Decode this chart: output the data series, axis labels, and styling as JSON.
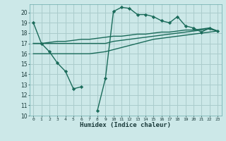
{
  "xlabel": "Humidex (Indice chaleur)",
  "bg_color": "#cce8e8",
  "grid_color": "#aacccc",
  "line_color": "#1a6b5a",
  "marker": "D",
  "markersize": 2.2,
  "linewidth": 1.0,
  "xlim": [
    -0.5,
    23.5
  ],
  "ylim": [
    10,
    20.8
  ],
  "yticks": [
    10,
    11,
    12,
    13,
    14,
    15,
    16,
    17,
    18,
    19,
    20
  ],
  "xticks": [
    0,
    1,
    2,
    3,
    4,
    5,
    6,
    7,
    8,
    9,
    10,
    11,
    12,
    13,
    14,
    15,
    16,
    17,
    18,
    19,
    20,
    21,
    22,
    23
  ],
  "series1_x": [
    0,
    1,
    2,
    3,
    4,
    5,
    6
  ],
  "series1_y": [
    19.0,
    17.0,
    16.2,
    15.1,
    14.3,
    12.6,
    12.8
  ],
  "series2_x": [
    8,
    9,
    10,
    11,
    12,
    13,
    14,
    15,
    16,
    17,
    18,
    19,
    20,
    21,
    22,
    23
  ],
  "series2_y": [
    10.5,
    13.6,
    20.1,
    20.5,
    20.4,
    19.8,
    19.8,
    19.6,
    19.2,
    19.0,
    19.6,
    18.7,
    18.5,
    18.1,
    18.5,
    18.2
  ],
  "series3_x": [
    0,
    1,
    2,
    3,
    4,
    5,
    6,
    7,
    8,
    9,
    10,
    11,
    12,
    13,
    14,
    15,
    16,
    17,
    18,
    19,
    20,
    21,
    22,
    23
  ],
  "series3_y": [
    17.0,
    17.0,
    17.1,
    17.2,
    17.2,
    17.3,
    17.4,
    17.4,
    17.5,
    17.6,
    17.7,
    17.7,
    17.8,
    17.9,
    17.9,
    18.0,
    18.1,
    18.1,
    18.2,
    18.3,
    18.3,
    18.4,
    18.5,
    18.2
  ],
  "series4_x": [
    0,
    1,
    2,
    3,
    4,
    5,
    6,
    7,
    8,
    9,
    10,
    11,
    12,
    13,
    14,
    15,
    16,
    17,
    18,
    19,
    20,
    21,
    22,
    23
  ],
  "series4_y": [
    17.0,
    17.0,
    17.0,
    17.0,
    17.0,
    17.0,
    17.0,
    17.0,
    17.0,
    17.0,
    17.2,
    17.3,
    17.4,
    17.5,
    17.6,
    17.7,
    17.8,
    17.9,
    18.0,
    18.1,
    18.2,
    18.3,
    18.4,
    18.2
  ],
  "series5_x": [
    0,
    1,
    2,
    3,
    4,
    5,
    6,
    7,
    8,
    9,
    10,
    11,
    12,
    13,
    14,
    15,
    16,
    17,
    18,
    19,
    20,
    21,
    22,
    23
  ],
  "series5_y": [
    16.0,
    16.0,
    16.0,
    16.0,
    16.0,
    16.0,
    16.0,
    16.0,
    16.1,
    16.2,
    16.4,
    16.6,
    16.8,
    17.0,
    17.2,
    17.4,
    17.5,
    17.6,
    17.7,
    17.8,
    17.9,
    18.0,
    18.1,
    18.2
  ]
}
